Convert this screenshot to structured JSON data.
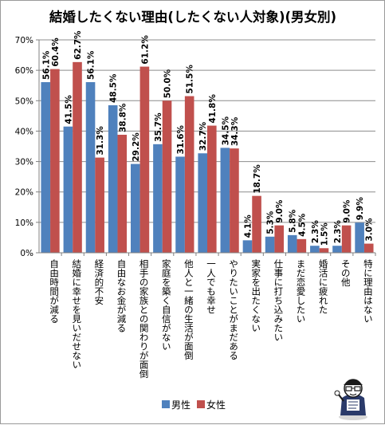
{
  "chart_data": {
    "type": "bar",
    "title": "結婚したくない理由(したくない人対象)(男女別)",
    "categories": [
      "自由時間が減る",
      "結婚に幸せを見いだせない",
      "経済的不安",
      "自由なお金が減る",
      "相手の家族との関わりが面倒",
      "家庭を築く自信がない",
      "他人と一緒の生活が面倒",
      "一人でも幸せ",
      "やりたいことがまだある",
      "実家を出たくない",
      "仕事に打ち込みたい",
      "まだ恋愛したい",
      "婚活に疲れた",
      "その他",
      "特に理由はない"
    ],
    "series": [
      {
        "name": "男性",
        "color": "#4F81BD",
        "values": [
          56.1,
          41.5,
          56.1,
          48.5,
          29.2,
          35.7,
          31.6,
          32.7,
          34.5,
          4.1,
          5.3,
          5.8,
          2.3,
          2.3,
          9.9
        ],
        "labels": [
          "56.1%",
          "41.5%",
          "56.1%",
          "48.5%",
          "29.2%",
          "35.7%",
          "31.6%",
          "32.7%",
          "34.5%",
          "4.1%",
          "5.3%",
          "5.8%",
          "2.3%",
          "2.3%",
          "9.9%"
        ]
      },
      {
        "name": "女性",
        "color": "#C0504D",
        "values": [
          60.4,
          62.7,
          31.3,
          38.8,
          61.2,
          50.0,
          51.5,
          41.8,
          34.3,
          18.7,
          9.0,
          4.5,
          1.5,
          9.0,
          3.0
        ],
        "labels": [
          "60.4%",
          "62.7%",
          "31.3%",
          "38.8%",
          "61.2%",
          "50.0%",
          "51.5%",
          "41.8%",
          "34.3%",
          "18.7%",
          "9.0%",
          "4.5%",
          "1.5%",
          "9.0%",
          "3.0%"
        ]
      }
    ],
    "ylim": [
      0,
      70
    ],
    "yticks": [
      0,
      10,
      20,
      30,
      40,
      50,
      60,
      70
    ],
    "ytick_labels": [
      "0%",
      "10%",
      "20%",
      "30%",
      "40%",
      "50%",
      "60%",
      "70%"
    ],
    "grid": true,
    "legend_position": "bottom",
    "logo_icon": "cartoon-mascot-icon"
  }
}
